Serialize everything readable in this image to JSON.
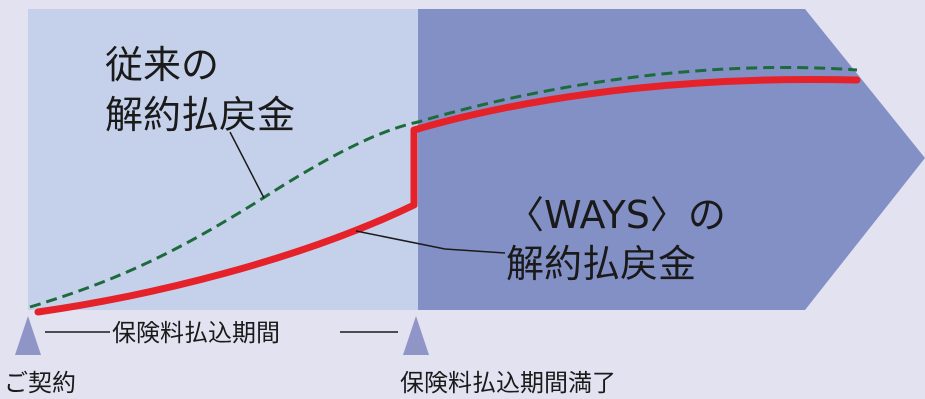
{
  "labels": {
    "traditional_line1": "従来の",
    "traditional_line2": "解約払戻金",
    "ways_line1": "〈WAYS〉の",
    "ways_line2": "解約払戻金",
    "premium_period": "保険料払込期間",
    "contract_start": "ご契約",
    "premium_period_end": "保険料払込期間満了"
  },
  "colors": {
    "background": "#e3e2f1",
    "premium_period_region": "#c5d1ea",
    "after_period_region": "#8390c5",
    "markers": "#8f95c7",
    "traditional_curve": "#1d6b3c",
    "ways_curve": "#e5222a",
    "leader_lines": "#1a1a1a"
  }
}
